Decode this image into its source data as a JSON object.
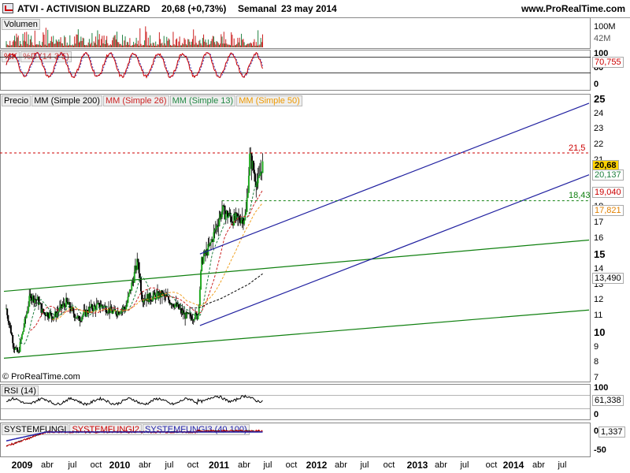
{
  "header": {
    "title": "ATVI - ACTIVISION BLIZZARD",
    "price": "20,68 (+0,73%)",
    "period": "Semanal",
    "date": "23 may 2014",
    "site": "www.ProRealTime.com"
  },
  "colors": {
    "accent_red": "#cc0000",
    "channel": "#2020a0",
    "trend": "#108010",
    "sma200": "#000000",
    "sma26": "#cc2020",
    "sma13": "#208040",
    "sma50": "#f0a020"
  },
  "volume_panel": {
    "label": "Volumen",
    "ticks": [
      "100M",
      "42M"
    ]
  },
  "stoch_panel": {
    "label_k": "%K",
    "label_d": "%D (14 3 5)",
    "ticks": [
      "100",
      "80",
      "20",
      "0"
    ],
    "value": "70,755"
  },
  "price_panel": {
    "legend": [
      "Precio",
      "MM (Simple 200)",
      "MM (Simple 26)",
      "MM (Simple 13)",
      "MM (Simple 50)"
    ],
    "ticks": [
      "25",
      "24",
      "23",
      "22",
      "21",
      "20",
      "19",
      "18",
      "17",
      "16",
      "15",
      "14",
      "13",
      "12",
      "11",
      "10",
      "9",
      "8",
      "7"
    ],
    "resistance_label": "21,5",
    "support_label": "18,43",
    "tags": {
      "close": "20,68",
      "sma13": "20,137",
      "sma26": "19,040",
      "sma50": "17,821",
      "sma200": "13,490"
    },
    "watermark": "© ProRealTime.com"
  },
  "rsi_panel": {
    "label": "RSI (14)",
    "ticks": [
      "100",
      "0"
    ],
    "value": "61,338"
  },
  "sys_panel": {
    "labels": [
      "SYSTEMFUNGI",
      "SYSTEMFUNGI2",
      "SYSTEMFUNGI3 (40 100)"
    ],
    "ticks": [
      "0",
      "-50"
    ],
    "value": "1,337"
  },
  "x_axis": {
    "labels": [
      {
        "t": "2009",
        "year": true
      },
      {
        "t": "abr"
      },
      {
        "t": "jul"
      },
      {
        "t": "oct"
      },
      {
        "t": "2010",
        "year": true
      },
      {
        "t": "abr"
      },
      {
        "t": "jul"
      },
      {
        "t": "oct"
      },
      {
        "t": "2011",
        "year": true
      },
      {
        "t": "abr"
      },
      {
        "t": "jul"
      },
      {
        "t": "oct"
      },
      {
        "t": "2012",
        "year": true
      },
      {
        "t": "abr"
      },
      {
        "t": "jul"
      },
      {
        "t": "oct"
      },
      {
        "t": "2013",
        "year": true
      },
      {
        "t": "abr"
      },
      {
        "t": "jul"
      },
      {
        "t": "oct"
      },
      {
        "t": "2014",
        "year": true
      },
      {
        "t": "abr"
      },
      {
        "t": "jul"
      }
    ]
  },
  "chart_data": {
    "type": "line",
    "title": "ATVI - ACTIVISION BLIZZARD",
    "frequency": "weekly",
    "ylim": [
      7,
      25
    ],
    "x": [
      "2009-01",
      "2009-04",
      "2009-07",
      "2009-10",
      "2010-01",
      "2010-04",
      "2010-07",
      "2010-10",
      "2011-01",
      "2011-04",
      "2011-07",
      "2011-10",
      "2012-01",
      "2012-04",
      "2012-07",
      "2012-10",
      "2013-01",
      "2013-04",
      "2013-07",
      "2013-10",
      "2014-01",
      "2014-04",
      "2014-05"
    ],
    "series": [
      {
        "name": "Precio",
        "values": [
          8.6,
          10.4,
          12.3,
          11.3,
          11.0,
          11.9,
          10.8,
          11.5,
          11.7,
          11.2,
          11.6,
          12.0,
          12.2,
          12.4,
          11.8,
          11.0,
          11.3,
          14.6,
          17.7,
          17.2,
          17.6,
          21.2,
          20.68
        ]
      },
      {
        "name": "MM (Simple 200)",
        "values": [
          null,
          null,
          null,
          null,
          null,
          null,
          null,
          null,
          null,
          null,
          null,
          11.4,
          11.5,
          11.6,
          11.7,
          11.8,
          11.9,
          12.1,
          12.4,
          12.8,
          13.0,
          13.3,
          13.49
        ]
      }
    ],
    "levels": [
      {
        "value": 21.5,
        "label": "21,5"
      },
      {
        "value": 18.43,
        "label": "18,43"
      }
    ],
    "last_values": {
      "close": 20.68,
      "sma13": 20.137,
      "sma26": 19.04,
      "sma50": 17.821,
      "sma200": 13.49,
      "stochastic_k": 70.755,
      "rsi": 61.338,
      "systemfungi": 1.337
    }
  }
}
